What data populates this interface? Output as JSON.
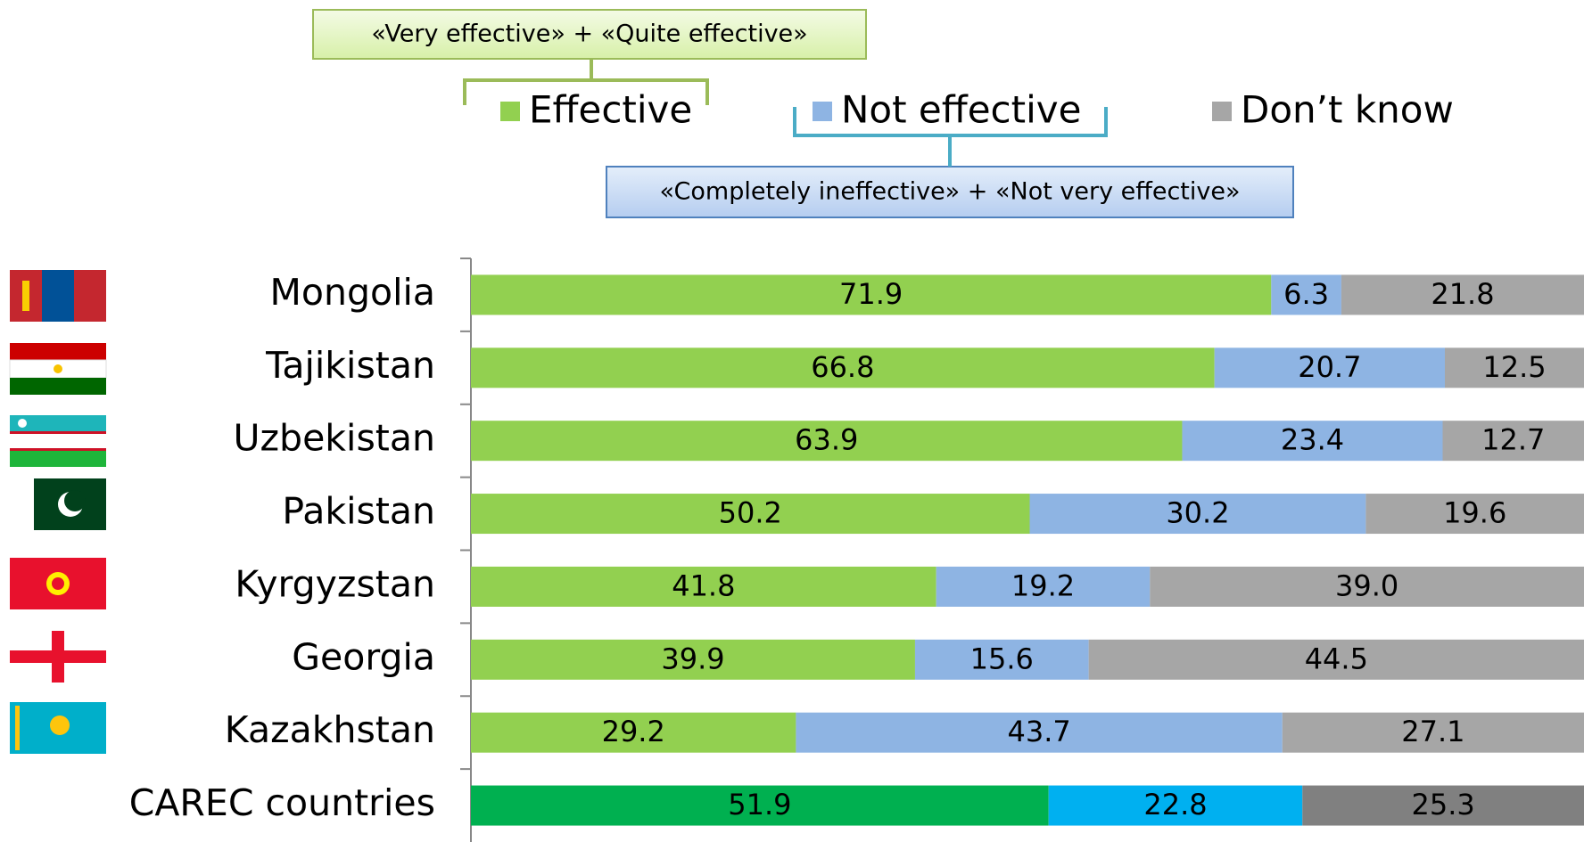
{
  "chart_data": {
    "type": "stacked-bar-horizontal",
    "annotations": [
      "«Very effective» + «Quite effective»",
      "«Completely ineffective» + «Not very effective»"
    ],
    "categories": [
      "Mongolia",
      "Tajikistan",
      "Uzbekistan",
      "Pakistan",
      "Kyrgyzstan",
      "Georgia",
      "Kazakhstan",
      "CAREC countries"
    ],
    "series": [
      {
        "name": "Effective",
        "color": "#92d050",
        "colors": [
          "#92d050",
          "#92d050",
          "#92d050",
          "#92d050",
          "#92d050",
          "#92d050",
          "#92d050",
          "#00b050"
        ],
        "values": [
          71.9,
          66.8,
          63.9,
          50.2,
          41.8,
          39.9,
          29.2,
          51.9
        ],
        "value_labels": [
          "71.9",
          "66.8",
          "63.9",
          "50.2",
          "41.8",
          "39.9",
          "29.2",
          "51.9"
        ]
      },
      {
        "name": "Not effective",
        "color": "#8eb4e3",
        "colors": [
          "#8eb4e3",
          "#8eb4e3",
          "#8eb4e3",
          "#8eb4e3",
          "#8eb4e3",
          "#8eb4e3",
          "#8eb4e3",
          "#00b0f0"
        ],
        "values": [
          6.3,
          20.7,
          23.4,
          30.2,
          19.2,
          15.6,
          43.7,
          22.8
        ],
        "value_labels": [
          "6.3",
          "20.7",
          "23.4",
          "30.2",
          "19.2",
          "15.6",
          "43.7",
          "22.8"
        ]
      },
      {
        "name": "Don’t know",
        "color": "#a6a6a6",
        "colors": [
          "#a6a6a6",
          "#a6a6a6",
          "#a6a6a6",
          "#a6a6a6",
          "#a6a6a6",
          "#a6a6a6",
          "#a6a6a6",
          "#808080"
        ],
        "values": [
          21.8,
          12.5,
          12.7,
          19.6,
          39.0,
          44.5,
          27.1,
          25.3
        ],
        "value_labels": [
          "21.8",
          "12.5",
          "12.7",
          "19.6",
          "39.0",
          "44.5",
          "27.1",
          "25.3"
        ]
      }
    ],
    "xlim": [
      0,
      100
    ]
  }
}
